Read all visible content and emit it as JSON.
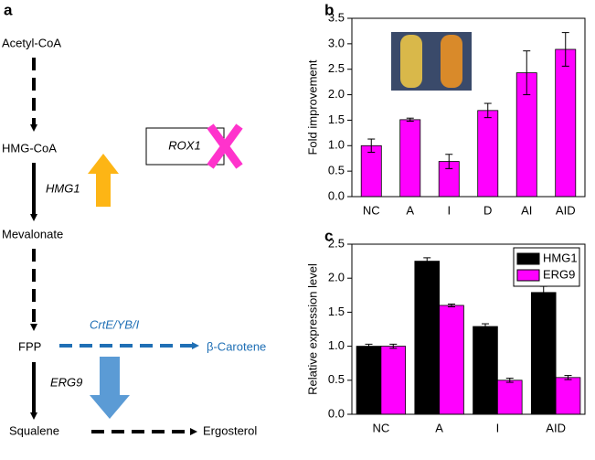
{
  "diagram": {
    "panel_label": "a",
    "nodes": [
      "Acetyl-CoA",
      "HMG-CoA",
      "Mevalonate",
      "FPP",
      "Squalene",
      "Ergosterol",
      "β-Carotene"
    ],
    "genes": [
      "HMG1",
      "ERG9",
      "CrtE/YB/I",
      "ROX1"
    ]
  },
  "chart_data": [
    {
      "type": "bar",
      "panel_label": "b",
      "y_label": "Fold improvement",
      "categories": [
        "NC",
        "A",
        "I",
        "D",
        "AI",
        "AID"
      ],
      "values": [
        1.0,
        1.51,
        0.69,
        1.69,
        2.43,
        2.89
      ],
      "errors": [
        0.13,
        0.03,
        0.14,
        0.14,
        0.43,
        0.33
      ],
      "color": "#ff00ff",
      "ylim": [
        0,
        3.5
      ],
      "yticks": [
        {
          "value": 0,
          "label": "0.0"
        },
        0.5,
        {
          "value": 1,
          "label": "1.0"
        },
        1.5,
        {
          "value": 2,
          "label": "2.0"
        },
        2.5,
        {
          "value": 3,
          "label": "3.0"
        },
        3.5
      ]
    },
    {
      "type": "bar",
      "panel_label": "c",
      "y_label": "Relative expression level",
      "categories": [
        "NC",
        "A",
        "I",
        "AID"
      ],
      "series": [
        {
          "name": "HMG1",
          "color": "#000000",
          "values": [
            1.0,
            2.25,
            1.29,
            1.79
          ],
          "errors": [
            0.03,
            0.05,
            0.04,
            0.09
          ]
        },
        {
          "name": "ERG9",
          "color": "#ff00ff",
          "values": [
            1.0,
            1.6,
            0.5,
            0.54
          ],
          "errors": [
            0.03,
            0.02,
            0.03,
            0.03
          ]
        }
      ],
      "ylim": [
        0,
        2.5
      ],
      "legend": "upper right",
      "yticks": [
        {
          "value": 0,
          "label": "0.0"
        },
        0.5,
        {
          "value": 1,
          "label": "1.0"
        },
        1.5,
        {
          "value": 2,
          "label": "2.0"
        },
        2.5
      ]
    }
  ]
}
